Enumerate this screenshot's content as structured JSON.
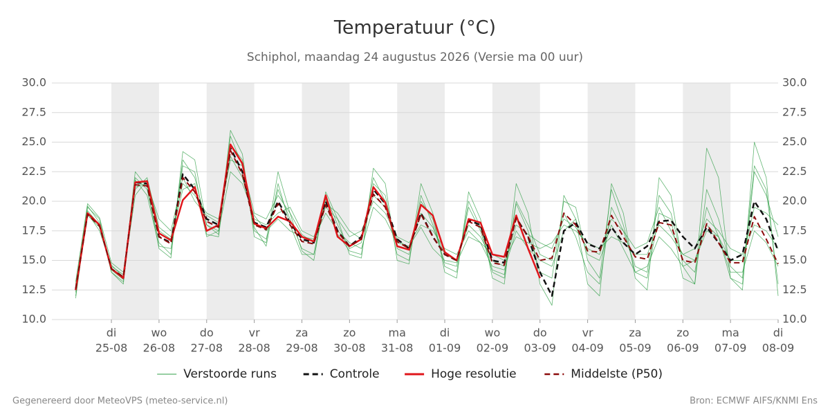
{
  "chart_data": {
    "type": "line",
    "title": "Temperatuur (°C)",
    "subtitle": "Schiphol, maandag 24 augustus 2026 (Versie ma 00 uur)",
    "x": [
      6,
      12,
      18,
      24,
      30,
      36,
      42,
      48,
      54,
      60,
      66,
      72,
      78,
      84,
      90,
      96,
      102,
      108,
      114,
      120,
      126,
      132,
      138,
      144,
      150,
      156,
      162,
      168,
      174,
      180,
      186,
      192,
      198,
      204,
      210,
      216,
      222,
      228,
      234,
      240,
      246,
      252,
      258,
      264,
      270,
      276,
      282,
      288,
      294,
      300,
      306,
      312,
      318,
      324,
      330,
      336,
      342,
      348,
      354,
      360
    ],
    "xlim": [
      -6,
      360
    ],
    "xticks": [
      {
        "value": 24,
        "day": "di",
        "label": "25-08"
      },
      {
        "value": 48,
        "day": "wo",
        "label": "26-08"
      },
      {
        "value": 72,
        "day": "do",
        "label": "27-08"
      },
      {
        "value": 96,
        "day": "vr",
        "label": "28-08"
      },
      {
        "value": 120,
        "day": "za",
        "label": "29-08"
      },
      {
        "value": 144,
        "day": "zo",
        "label": "30-08"
      },
      {
        "value": 168,
        "day": "ma",
        "label": "31-08"
      },
      {
        "value": 192,
        "day": "di",
        "label": "01-09"
      },
      {
        "value": 216,
        "day": "wo",
        "label": "02-09"
      },
      {
        "value": 240,
        "day": "do",
        "label": "03-09"
      },
      {
        "value": 264,
        "day": "vr",
        "label": "04-09"
      },
      {
        "value": 288,
        "day": "za",
        "label": "05-09"
      },
      {
        "value": 312,
        "day": "zo",
        "label": "06-09"
      },
      {
        "value": 336,
        "day": "ma",
        "label": "07-09"
      },
      {
        "value": 360,
        "day": "di",
        "label": "08-09"
      }
    ],
    "ylim": [
      10,
      30
    ],
    "yticks": [
      {
        "value": 10,
        "label": "10.0"
      },
      {
        "value": 12.5,
        "label": "12.5"
      },
      {
        "value": 15,
        "label": "15.0"
      },
      {
        "value": 17.5,
        "label": "17.5"
      },
      {
        "value": 20,
        "label": "20.0"
      },
      {
        "value": 22.5,
        "label": "22.5"
      },
      {
        "value": 25,
        "label": "25.0"
      },
      {
        "value": 27.5,
        "label": "27.5"
      },
      {
        "value": 30,
        "label": "30.0"
      }
    ],
    "y2lim": [
      10,
      30
    ],
    "y2ticks": [
      {
        "value": 10,
        "label": "10.0"
      },
      {
        "value": 12.5,
        "label": "12.5"
      },
      {
        "value": 15,
        "label": "15.0"
      },
      {
        "value": 17.5,
        "label": "17.5"
      },
      {
        "value": 20,
        "label": "20.0"
      },
      {
        "value": 22.5,
        "label": "22.5"
      },
      {
        "value": 25,
        "label": "25.0"
      },
      {
        "value": 27.5,
        "label": "27.5"
      },
      {
        "value": 30,
        "label": "30.0"
      }
    ],
    "grid": true,
    "legend": "bottom",
    "series": [
      {
        "name": "Verstoorde runs",
        "color": "#2e9e44",
        "dash": false,
        "width": 0.8,
        "members": [
          [
            12.0,
            19.5,
            18.5,
            14.0,
            13.2,
            22.0,
            21.0,
            16.5,
            15.5,
            23.5,
            22.0,
            18.0,
            17.5,
            25.5,
            23.0,
            17.5,
            16.8,
            21.0,
            18.5,
            16.0,
            15.5,
            20.5,
            18.0,
            16.0,
            16.5,
            22.0,
            20.0,
            15.5,
            15.0,
            20.5,
            18.0,
            14.8,
            14.5,
            19.5,
            17.5,
            14.0,
            13.5,
            20.0,
            18.0,
            15.5,
            15.0,
            19.0,
            17.0,
            14.0,
            13.0,
            19.5,
            17.5,
            14.5,
            14.0,
            20.5,
            19.0,
            15.0,
            14.0,
            19.5,
            17.0,
            13.5,
            13.0,
            22.5,
            20.5,
            17.0
          ],
          [
            13.0,
            19.0,
            17.5,
            14.5,
            13.8,
            21.0,
            22.0,
            17.8,
            17.0,
            21.5,
            20.5,
            19.0,
            18.5,
            23.8,
            22.0,
            18.5,
            18.0,
            19.0,
            19.5,
            17.5,
            17.0,
            19.5,
            18.5,
            17.0,
            17.5,
            20.0,
            19.0,
            17.0,
            16.5,
            18.0,
            17.5,
            16.0,
            15.5,
            17.5,
            16.5,
            15.5,
            15.0,
            17.0,
            16.5,
            16.0,
            16.5,
            18.0,
            17.5,
            16.5,
            16.0,
            17.0,
            16.5,
            15.5,
            15.5,
            18.0,
            17.0,
            15.5,
            16.0,
            18.5,
            17.5,
            16.0,
            15.5,
            18.0,
            17.5,
            16.0
          ],
          [
            12.8,
            19.6,
            18.2,
            14.2,
            13.4,
            22.5,
            21.2,
            16.0,
            15.2,
            24.2,
            23.5,
            18.0,
            17.2,
            26.0,
            24.0,
            17.0,
            16.5,
            22.5,
            19.0,
            15.8,
            15.0,
            20.8,
            18.5,
            15.5,
            15.2,
            22.8,
            21.5,
            15.0,
            14.7,
            21.5,
            19.0,
            14.0,
            13.5,
            20.8,
            18.5,
            13.5,
            13.0,
            21.5,
            19.0,
            13.0,
            11.2,
            20.5,
            18.5,
            13.0,
            12.0,
            21.5,
            19.0,
            13.5,
            12.5,
            22.0,
            20.5,
            14.5,
            13.0,
            24.5,
            22.0,
            13.5,
            12.5,
            25.0,
            22.0,
            12.0
          ],
          [
            12.3,
            18.8,
            17.8,
            14.6,
            13.6,
            20.5,
            21.8,
            17.5,
            16.8,
            21.0,
            21.5,
            17.0,
            17.5,
            22.5,
            21.5,
            18.8,
            17.5,
            18.5,
            17.5,
            17.0,
            16.8,
            19.0,
            17.5,
            16.5,
            16.0,
            19.5,
            18.5,
            16.5,
            16.2,
            17.8,
            16.0,
            15.0,
            14.8,
            17.0,
            16.5,
            14.5,
            14.2,
            17.5,
            16.0,
            15.0,
            14.5,
            17.5,
            18.5,
            15.5,
            15.0,
            18.0,
            16.0,
            14.0,
            14.5,
            17.0,
            16.0,
            14.5,
            15.0,
            18.0,
            17.0,
            14.0,
            14.0,
            17.5,
            16.5,
            14.5
          ],
          [
            11.8,
            19.2,
            18.0,
            14.0,
            13.0,
            21.8,
            20.5,
            16.2,
            16.0,
            23.0,
            22.5,
            17.2,
            17.0,
            24.8,
            23.5,
            17.8,
            16.2,
            21.5,
            18.0,
            15.5,
            15.5,
            20.2,
            17.2,
            15.8,
            15.5,
            21.5,
            20.5,
            16.0,
            15.5,
            20.0,
            18.5,
            14.5,
            14.0,
            20.0,
            17.8,
            14.2,
            13.8,
            19.8,
            17.5,
            14.0,
            13.5,
            20.0,
            19.5,
            15.0,
            13.5,
            21.0,
            18.0,
            14.0,
            13.5,
            19.0,
            18.5,
            13.5,
            13.0,
            21.0,
            18.5,
            14.5,
            13.5,
            23.0,
            21.0,
            13.0
          ],
          [
            13.2,
            19.8,
            18.6,
            14.8,
            14.0,
            21.2,
            21.5,
            18.5,
            17.5,
            22.0,
            20.0,
            18.8,
            18.2,
            23.5,
            23.0,
            19.0,
            18.5,
            20.5,
            19.0,
            17.2,
            16.5,
            19.8,
            19.0,
            17.5,
            16.8,
            20.5,
            19.5,
            16.8,
            16.0,
            19.0,
            17.8,
            15.5,
            15.0,
            18.0,
            17.0,
            15.0,
            14.5,
            18.0,
            17.2,
            16.5,
            16.0,
            18.5,
            17.8,
            16.0,
            15.5,
            18.5,
            17.5,
            16.0,
            16.5,
            19.5,
            17.5,
            15.5,
            15.0,
            17.5,
            17.0,
            15.0,
            15.0,
            19.5,
            19.0,
            18.0
          ]
        ]
      },
      {
        "name": "Controle",
        "color": "#111111",
        "dash": true,
        "width": 2.5,
        "values": [
          12.5,
          19.0,
          18.0,
          14.3,
          13.5,
          21.6,
          21.5,
          17.0,
          16.5,
          22.3,
          21.0,
          18.5,
          18.0,
          24.5,
          22.5,
          18.2,
          17.8,
          20.0,
          18.2,
          16.8,
          16.5,
          20.0,
          17.5,
          16.2,
          17.0,
          21.0,
          19.8,
          16.8,
          16.0,
          19.0,
          17.0,
          15.5,
          15.0,
          18.4,
          18.0,
          15.0,
          14.8,
          18.6,
          17.0,
          14.0,
          12.0,
          17.5,
          18.2,
          16.4,
          16.0,
          17.8,
          16.5,
          15.5,
          16.2,
          18.3,
          18.4,
          17.0,
          16.0,
          17.8,
          16.5,
          15.0,
          15.5,
          20.0,
          18.5,
          15.8
        ]
      },
      {
        "name": "Hoge resolutie",
        "color": "#e0161b",
        "dash": false,
        "width": 2.5,
        "values": [
          12.5,
          19.0,
          18.0,
          14.3,
          13.5,
          21.6,
          21.7,
          17.3,
          16.7,
          20.1,
          21.2,
          17.5,
          18.0,
          24.8,
          23.2,
          18.1,
          17.7,
          18.7,
          18.3,
          17.0,
          16.6,
          20.5,
          17.0,
          16.2,
          16.8,
          21.2,
          19.9,
          16.2,
          15.9,
          19.7,
          18.8,
          15.7,
          15.0,
          18.5,
          18.2,
          15.5,
          15.3,
          18.8,
          16.0,
          13.5,
          null,
          null,
          null,
          null,
          null,
          null,
          null,
          null,
          null,
          null,
          null,
          null,
          null,
          null,
          null,
          null,
          null,
          null,
          null,
          null
        ]
      },
      {
        "name": "Middelste (P50)",
        "color": "#8b0a0a",
        "dash": true,
        "width": 2,
        "values": [
          12.6,
          18.9,
          17.9,
          14.3,
          13.6,
          21.4,
          21.3,
          17.0,
          16.4,
          22.0,
          20.8,
          18.3,
          17.8,
          24.3,
          22.3,
          18.0,
          17.6,
          19.8,
          18.0,
          16.6,
          16.4,
          19.7,
          17.4,
          16.2,
          16.8,
          20.6,
          19.5,
          16.6,
          16.0,
          18.9,
          17.0,
          15.5,
          15.0,
          18.3,
          17.8,
          14.8,
          14.6,
          18.6,
          17.0,
          15.0,
          15.2,
          19.0,
          18.0,
          15.8,
          15.7,
          18.8,
          17.0,
          15.3,
          15.1,
          18.2,
          18.0,
          15.0,
          14.8,
          18.1,
          16.5,
          14.8,
          14.8,
          18.7,
          16.8,
          14.7
        ]
      }
    ],
    "footer_left": "Gegenereerd door MeteoVPS (meteo-service.nl)",
    "footer_right": "Bron: ECMWF AIFS/KNMI Ens"
  }
}
